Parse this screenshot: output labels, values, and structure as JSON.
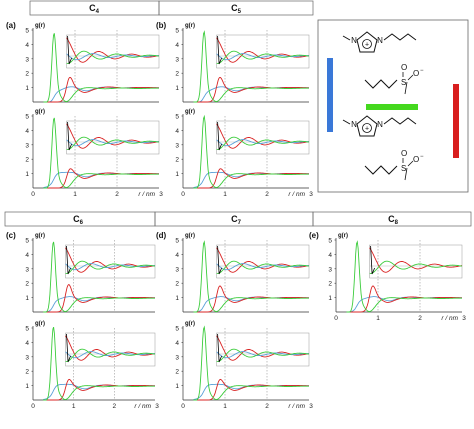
{
  "header_row_1": [
    "C4",
    "C5"
  ],
  "header_row_2": [
    "C6",
    "C7",
    "C8"
  ],
  "panel_tags": [
    "(a)",
    "(b)",
    "(c)",
    "(d)",
    "(e)"
  ],
  "ylabel": "g(r)",
  "xlabel": "r / nm",
  "colors": {
    "red": "#d92323",
    "green": "#3ccc3c",
    "blue": "#5aa0d8",
    "inset": "#000000",
    "grid": "#9a9a9a",
    "frame": "#888888"
  },
  "legend": {
    "ion_top_left": "N",
    "ion_top_center": "+",
    "ion_top_right": "N",
    "sulfonate_s": "S",
    "sulfonate_o_up": "O",
    "sulfonate_o_side": "O",
    "sulfonate_charge": "−",
    "ion_bottom_left": "N",
    "ion_bottom_center": "+",
    "ion_bottom_right": "N",
    "sulfonate2_s": "S",
    "sulfonate2_o_up": "O",
    "sulfonate2_o_side": "O",
    "sulfonate2_charge": "−",
    "bars": [
      {
        "color": "#3a78d8",
        "orientation": "vertical"
      },
      {
        "color": "#44d81e",
        "orientation": "horizontal"
      },
      {
        "color": "#d81e1e",
        "orientation": "vertical"
      }
    ]
  },
  "chart_data": {
    "type": "line",
    "note_axes": "each panel: x range 0 to 3 nm, y range 0 to 5, dotted gridlines at r = 1 and r = 2",
    "xlim": [
      0,
      3
    ],
    "ylim": [
      0,
      5
    ],
    "xticks": [
      0,
      1,
      2,
      3
    ],
    "yticks": [
      0,
      1,
      2,
      3,
      4,
      5
    ],
    "panels": [
      {
        "id": "a-top",
        "tag": "(a)",
        "group": "C4",
        "show_xticks": false,
        "green_peak": 5.1,
        "red_peak": 1.9,
        "blue_peak": 0.9,
        "inset_curves": [
          "red",
          "blue",
          "green"
        ]
      },
      {
        "id": "a-bottom",
        "tag": "",
        "group": "C4",
        "show_xticks": true,
        "green_peak": 5.2,
        "red_peak": 1.5,
        "blue_peak": 1.2,
        "inset_curves": [
          "red",
          "blue",
          "green"
        ]
      },
      {
        "id": "b-top",
        "tag": "(b)",
        "group": "C5",
        "show_xticks": false,
        "green_peak": 5.2,
        "red_peak": 1.9,
        "blue_peak": 0.9,
        "inset_curves": [
          "red",
          "blue",
          "green"
        ]
      },
      {
        "id": "b-bottom",
        "tag": "",
        "group": "C5",
        "show_xticks": true,
        "green_peak": 5.3,
        "red_peak": 1.5,
        "blue_peak": 1.2,
        "inset_curves": [
          "red",
          "blue",
          "green"
        ]
      },
      {
        "id": "c-top",
        "tag": "(c)",
        "group": "C6",
        "show_xticks": false,
        "green_peak": 5.2,
        "red_peak": 2.1,
        "blue_peak": 1.0,
        "inset_curves": [
          "red",
          "blue",
          "green"
        ]
      },
      {
        "id": "c-bottom",
        "tag": "",
        "group": "C6",
        "show_xticks": true,
        "green_peak": 5.4,
        "red_peak": 1.6,
        "blue_peak": 1.2,
        "inset_curves": [
          "red",
          "blue",
          "green"
        ]
      },
      {
        "id": "d-top",
        "tag": "(d)",
        "group": "C7",
        "show_xticks": false,
        "green_peak": 5.2,
        "red_peak": 2.0,
        "blue_peak": 1.0,
        "inset_curves": [
          "red",
          "blue",
          "green"
        ]
      },
      {
        "id": "d-bottom",
        "tag": "",
        "group": "C7",
        "show_xticks": true,
        "green_peak": 5.4,
        "red_peak": 1.6,
        "blue_peak": 1.2,
        "inset_curves": [
          "red",
          "blue",
          "green"
        ]
      },
      {
        "id": "e-top",
        "tag": "(e)",
        "group": "C8",
        "show_xticks": true,
        "green_peak": 5.2,
        "red_peak": 2.0,
        "blue_peak": 1.0,
        "inset_curves": [
          "red",
          "green"
        ]
      }
    ],
    "series": [
      {
        "color": "red",
        "peak_r": 0.86,
        "peak_width": 0.075,
        "dip_r": 1.2,
        "dip_depth": 0.35,
        "osc_start": 1.05,
        "osc_period": 0.78,
        "inset_amp": 0.75
      },
      {
        "color": "blue",
        "peak_r": 0.55,
        "peak_width": 0.16,
        "dip_r": 1.25,
        "dip_depth": 0.18,
        "osc_start": 0.95,
        "osc_period": 0.78,
        "inset_amp": 0.35
      },
      {
        "color": "green",
        "peak_r": 0.5,
        "peak_width": 0.05,
        "dip_r": 0.78,
        "dip_depth": 0.9,
        "osc_start": 1.35,
        "osc_period": 0.78,
        "inset_amp": 0.55
      }
    ],
    "inset": {
      "x_from": 0.8,
      "x_to": 3.0,
      "y_base": 4.0,
      "note": "magnified long-range region, curves overlapping and oscillating around 4"
    }
  }
}
